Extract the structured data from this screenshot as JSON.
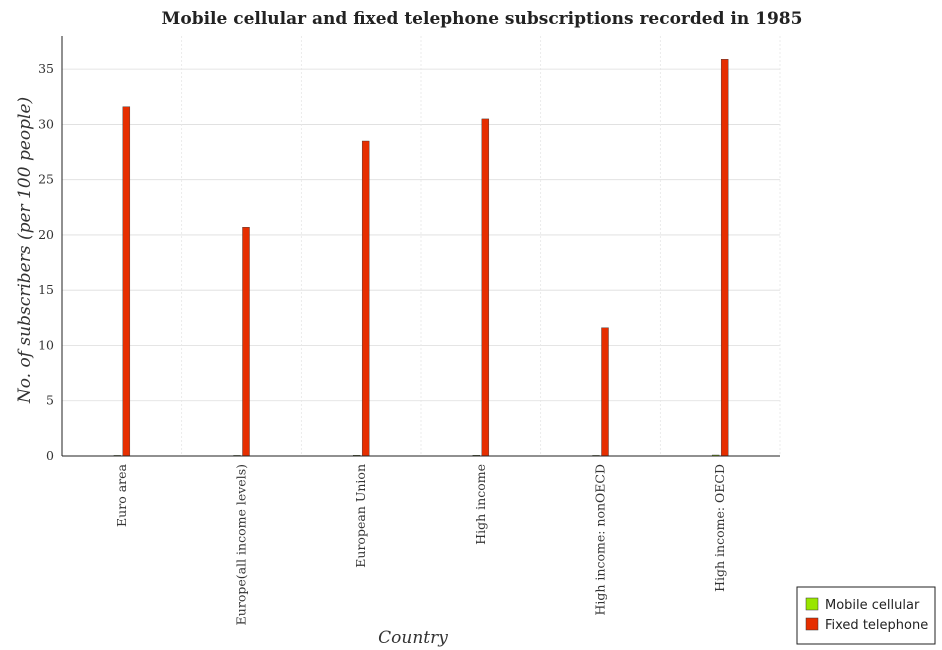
{
  "chart_data": {
    "type": "bar",
    "title": "Mobile cellular and fixed telephone subscriptions recorded in 1985",
    "xlabel": "Country",
    "ylabel": "No. of subscribers (per 100 people)",
    "categories": [
      "Euro area",
      "Europe(all income levels)",
      "European Union",
      "High income",
      "High income: nonOECD",
      "High income: OECD"
    ],
    "series": [
      {
        "name": "Mobile cellular",
        "color": "#99e600",
        "values": [
          0.03,
          0.04,
          0.07,
          0.07,
          0.01,
          0.09
        ]
      },
      {
        "name": "Fixed telephone",
        "color": "#e62e00",
        "values": [
          31.6,
          20.7,
          28.5,
          30.5,
          11.6,
          35.9
        ]
      }
    ],
    "ylim": [
      0,
      38
    ],
    "yticks": [
      0,
      5,
      10,
      15,
      20,
      25,
      30,
      35
    ],
    "grid": true,
    "legend_position": "bottom-right"
  }
}
